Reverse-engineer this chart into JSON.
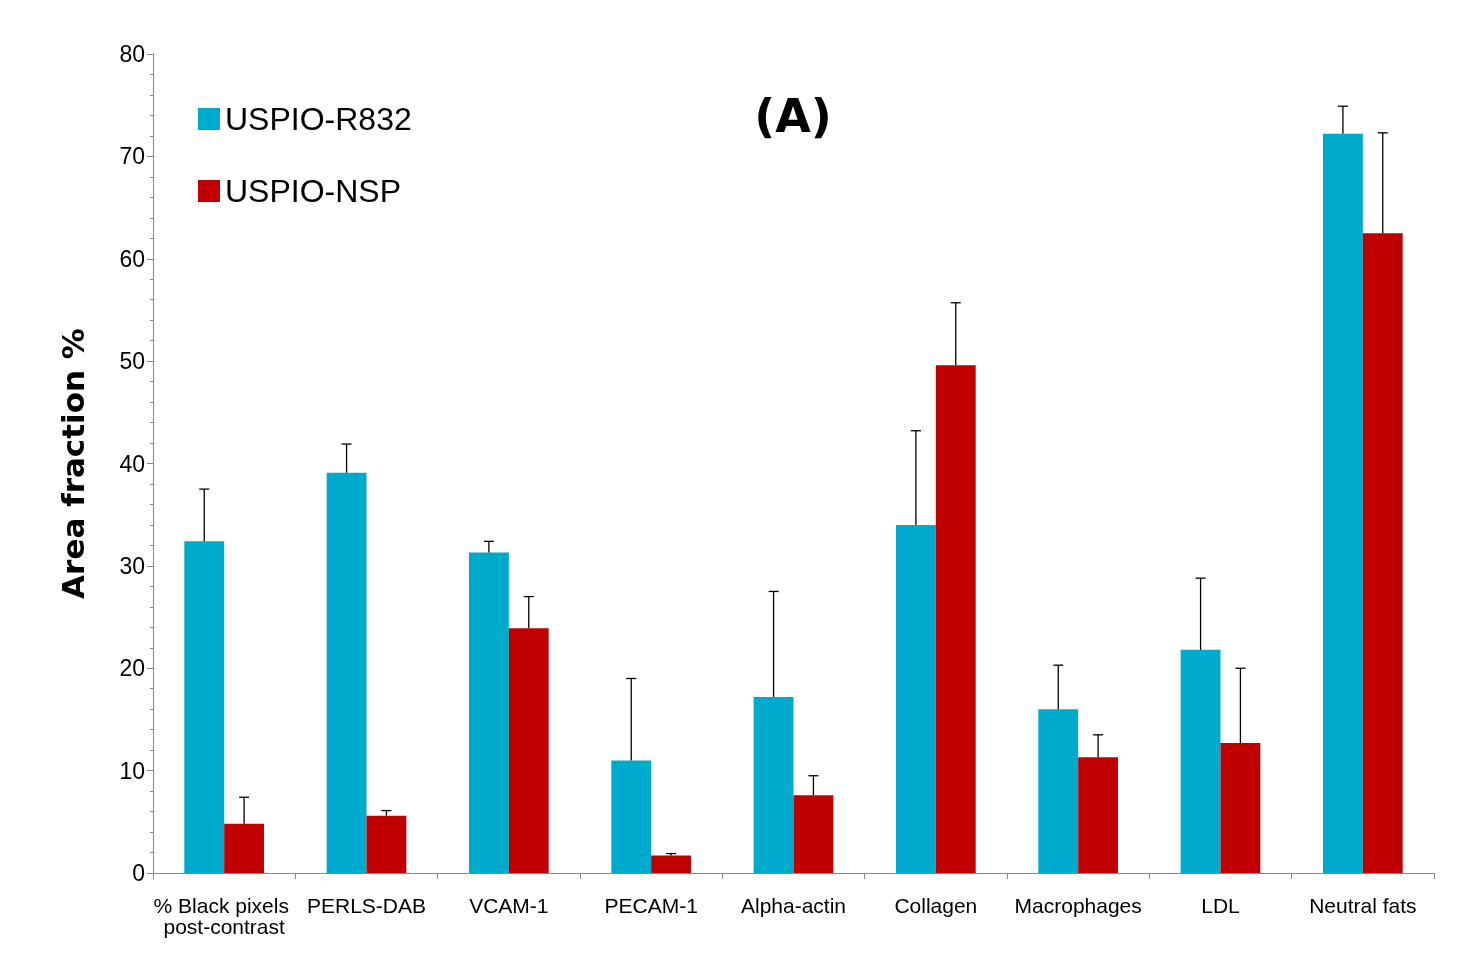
{
  "chart_data": {
    "type": "bar",
    "title": "(A)",
    "ylabel": "Area fraction %",
    "categories": [
      "% Black pixels post-contrast",
      "PERLS-DAB",
      "VCAM-1",
      "PECAM-1",
      "Alpha-actin",
      "Collagen",
      "Macrophages",
      "LDL",
      "Neutral fats"
    ],
    "series": [
      {
        "name": "USPIO-R832",
        "color": "#00aacc",
        "values": [
          32.4,
          39.1,
          31.3,
          11.0,
          17.2,
          34.0,
          16.0,
          21.8,
          72.2
        ],
        "errors": [
          [
            32.4,
            37.5
          ],
          [
            39.1,
            41.9
          ],
          [
            31.3,
            32.4
          ],
          [
            11.0,
            19.0
          ],
          [
            17.2,
            27.5
          ],
          [
            34.0,
            43.2
          ],
          [
            16.0,
            20.3
          ],
          [
            21.8,
            28.8
          ],
          [
            72.2,
            74.9
          ]
        ]
      },
      {
        "name": "USPIO-NSP",
        "color": "#c00000",
        "values": [
          4.8,
          5.6,
          23.9,
          1.7,
          7.6,
          49.6,
          11.3,
          12.7,
          62.5
        ],
        "errors": [
          [
            4.8,
            7.4
          ],
          [
            5.6,
            6.1
          ],
          [
            23.9,
            27.0
          ],
          [
            1.7,
            1.9
          ],
          [
            7.6,
            9.5
          ],
          [
            49.6,
            55.7
          ],
          [
            11.3,
            13.5
          ],
          [
            12.7,
            20.0
          ],
          [
            62.5,
            72.3
          ]
        ]
      }
    ],
    "ylim": [
      0,
      80
    ],
    "yticks": [
      0,
      10,
      20,
      30,
      40,
      50,
      60,
      70,
      80
    ],
    "grid": false,
    "legend": "top left"
  }
}
